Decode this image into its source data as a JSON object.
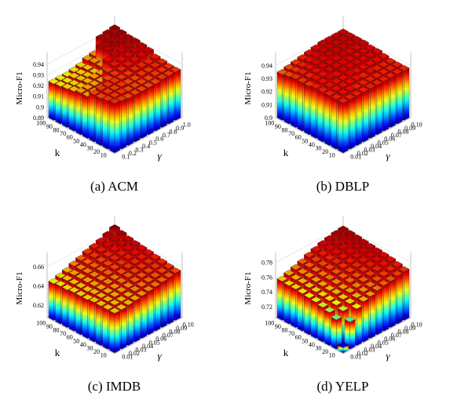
{
  "figure": {
    "panels": [
      {
        "id": "acm",
        "caption": "(a) ACM"
      },
      {
        "id": "dblp",
        "caption": "(b) DBLP"
      },
      {
        "id": "imdb",
        "caption": "(c) IMDB"
      },
      {
        "id": "yelp",
        "caption": "(d) YELP"
      }
    ]
  },
  "chart_data": [
    {
      "type": "bar3d",
      "dataset": "ACM",
      "zlabel": "Micro-F1",
      "xlabel": "k",
      "ylabel": "γ",
      "k_ticks": [
        "100",
        "90",
        "80",
        "70",
        "60",
        "50",
        "40",
        "30",
        "20",
        "10"
      ],
      "gamma_ticks": [
        "0.1",
        "0.2",
        "0.3",
        "0.4",
        "0.5",
        "0.6",
        "0.7",
        "0.8",
        "0.9",
        "1.0"
      ],
      "z_ticks": [
        "0.89",
        "0.9",
        "0.91",
        "0.92",
        "0.93",
        "0.94"
      ],
      "zlim": [
        0.89,
        0.945
      ],
      "note": "rows: k from 10 to 100; columns: gamma from 0.1 to 1.0 (values estimated)",
      "values": [
        [
          0.936,
          0.935,
          0.934,
          0.934,
          0.934,
          0.934,
          0.934,
          0.935,
          0.935,
          0.935
        ],
        [
          0.935,
          0.935,
          0.935,
          0.934,
          0.934,
          0.934,
          0.934,
          0.935,
          0.935,
          0.935
        ],
        [
          0.934,
          0.935,
          0.935,
          0.935,
          0.934,
          0.934,
          0.935,
          0.935,
          0.936,
          0.936
        ],
        [
          0.934,
          0.935,
          0.935,
          0.935,
          0.935,
          0.935,
          0.936,
          0.936,
          0.936,
          0.937
        ],
        [
          0.929,
          0.929,
          0.929,
          0.934,
          0.935,
          0.936,
          0.937,
          0.938,
          0.939,
          0.94
        ],
        [
          0.929,
          0.929,
          0.929,
          0.929,
          0.935,
          0.937,
          0.938,
          0.939,
          0.94,
          0.941
        ],
        [
          0.927,
          0.927,
          0.928,
          0.929,
          0.929,
          0.938,
          0.94,
          0.94,
          0.941,
          0.942
        ],
        [
          0.926,
          0.926,
          0.927,
          0.927,
          0.927,
          0.93,
          0.941,
          0.942,
          0.942,
          0.942
        ],
        [
          0.925,
          0.925,
          0.926,
          0.926,
          0.927,
          0.93,
          0.941,
          0.942,
          0.943,
          0.943
        ],
        [
          0.924,
          0.924,
          0.924,
          0.925,
          0.926,
          0.929,
          0.93,
          0.942,
          0.943,
          0.944
        ]
      ]
    },
    {
      "type": "bar3d",
      "dataset": "DBLP",
      "zlabel": "Micro-F1",
      "xlabel": "k",
      "ylabel": "γ",
      "k_ticks": [
        "100",
        "90",
        "80",
        "70",
        "60",
        "50",
        "40",
        "30",
        "20",
        "10"
      ],
      "gamma_ticks": [
        "0.01",
        "0.02",
        "0.03",
        "0.04",
        "0.05",
        "0.06",
        "0.07",
        "0.08",
        "0.09",
        "0.10"
      ],
      "z_ticks": [
        "0.9",
        "0.91",
        "0.92",
        "0.93",
        "0.94"
      ],
      "zlim": [
        0.9,
        0.945
      ],
      "note": "rows: k from 10 to 100; columns: gamma from 0.01 to 0.10 (values estimated)",
      "values": [
        [
          0.938,
          0.938,
          0.938,
          0.938,
          0.938,
          0.938,
          0.938,
          0.938,
          0.938,
          0.938
        ],
        [
          0.938,
          0.939,
          0.939,
          0.938,
          0.938,
          0.938,
          0.938,
          0.938,
          0.938,
          0.938
        ],
        [
          0.938,
          0.939,
          0.939,
          0.939,
          0.939,
          0.938,
          0.939,
          0.938,
          0.938,
          0.938
        ],
        [
          0.938,
          0.939,
          0.939,
          0.939,
          0.94,
          0.939,
          0.939,
          0.939,
          0.939,
          0.939
        ],
        [
          0.938,
          0.939,
          0.94,
          0.939,
          0.94,
          0.94,
          0.94,
          0.94,
          0.94,
          0.94
        ],
        [
          0.937,
          0.939,
          0.939,
          0.94,
          0.94,
          0.94,
          0.94,
          0.94,
          0.94,
          0.94
        ],
        [
          0.937,
          0.938,
          0.939,
          0.94,
          0.94,
          0.94,
          0.941,
          0.94,
          0.94,
          0.941
        ],
        [
          0.937,
          0.938,
          0.939,
          0.94,
          0.94,
          0.941,
          0.941,
          0.941,
          0.941,
          0.941
        ],
        [
          0.936,
          0.937,
          0.938,
          0.939,
          0.94,
          0.941,
          0.941,
          0.941,
          0.941,
          0.941
        ],
        [
          0.935,
          0.936,
          0.937,
          0.938,
          0.939,
          0.94,
          0.941,
          0.941,
          0.941,
          0.941
        ]
      ]
    },
    {
      "type": "bar3d",
      "dataset": "IMDB",
      "zlabel": "Micro-F1",
      "xlabel": "k",
      "ylabel": "γ",
      "k_ticks": [
        "100",
        "90",
        "80",
        "70",
        "60",
        "50",
        "40",
        "30",
        "20",
        "10"
      ],
      "gamma_ticks": [
        "0.01",
        "0.02",
        "0.03",
        "0.04",
        "0.05",
        "0.06",
        "0.07",
        "0.08",
        "0.09",
        "0.10"
      ],
      "z_ticks": [
        "0.62",
        "0.64",
        "0.66"
      ],
      "zlim": [
        0.607,
        0.668
      ],
      "note": "rows: k from 10 to 100; columns: gamma from 0.01 to 0.10 (values estimated)",
      "values": [
        [
          0.648,
          0.648,
          0.649,
          0.65,
          0.651,
          0.652,
          0.653,
          0.654,
          0.655,
          0.656
        ],
        [
          0.648,
          0.649,
          0.649,
          0.65,
          0.652,
          0.653,
          0.654,
          0.655,
          0.656,
          0.657
        ],
        [
          0.648,
          0.649,
          0.65,
          0.651,
          0.652,
          0.654,
          0.655,
          0.656,
          0.657,
          0.658
        ],
        [
          0.648,
          0.649,
          0.65,
          0.651,
          0.653,
          0.655,
          0.656,
          0.657,
          0.658,
          0.659
        ],
        [
          0.647,
          0.649,
          0.65,
          0.652,
          0.653,
          0.655,
          0.657,
          0.658,
          0.659,
          0.66
        ],
        [
          0.647,
          0.648,
          0.65,
          0.652,
          0.654,
          0.656,
          0.657,
          0.659,
          0.66,
          0.661
        ],
        [
          0.647,
          0.648,
          0.65,
          0.652,
          0.654,
          0.656,
          0.658,
          0.659,
          0.661,
          0.662
        ],
        [
          0.646,
          0.648,
          0.65,
          0.652,
          0.654,
          0.656,
          0.658,
          0.66,
          0.662,
          0.663
        ],
        [
          0.646,
          0.648,
          0.65,
          0.652,
          0.654,
          0.657,
          0.659,
          0.661,
          0.663,
          0.665
        ],
        [
          0.645,
          0.647,
          0.649,
          0.652,
          0.654,
          0.657,
          0.659,
          0.661,
          0.664,
          0.667
        ]
      ]
    },
    {
      "type": "bar3d",
      "dataset": "YELP",
      "zlabel": "Micro-F1",
      "xlabel": "k",
      "ylabel": "γ",
      "k_ticks": [
        "100",
        "90",
        "80",
        "70",
        "60",
        "50",
        "40",
        "30",
        "20",
        "10"
      ],
      "gamma_ticks": [
        "0.01",
        "0.02",
        "0.03",
        "0.04",
        "0.05",
        "0.06",
        "0.07",
        "0.08",
        "0.09",
        "0.10"
      ],
      "z_ticks": [
        "0.72",
        "0.74",
        "0.76",
        "0.78"
      ],
      "zlim": [
        0.705,
        0.785
      ],
      "note": "rows: k from 10 to 100; columns: gamma from 0.01 to 0.10 (values estimated)",
      "values": [
        [
          0.712,
          0.742,
          0.755,
          0.76,
          0.762,
          0.765,
          0.767,
          0.768,
          0.77,
          0.771
        ],
        [
          0.745,
          0.752,
          0.757,
          0.76,
          0.763,
          0.765,
          0.768,
          0.77,
          0.772,
          0.773
        ],
        [
          0.75,
          0.755,
          0.758,
          0.762,
          0.764,
          0.767,
          0.77,
          0.772,
          0.774,
          0.775
        ],
        [
          0.752,
          0.756,
          0.76,
          0.762,
          0.766,
          0.768,
          0.771,
          0.773,
          0.775,
          0.776
        ],
        [
          0.754,
          0.757,
          0.76,
          0.764,
          0.767,
          0.77,
          0.772,
          0.774,
          0.776,
          0.777
        ],
        [
          0.755,
          0.758,
          0.761,
          0.765,
          0.768,
          0.771,
          0.773,
          0.775,
          0.777,
          0.778
        ],
        [
          0.756,
          0.759,
          0.762,
          0.765,
          0.769,
          0.772,
          0.774,
          0.776,
          0.778,
          0.779
        ],
        [
          0.757,
          0.76,
          0.763,
          0.766,
          0.769,
          0.772,
          0.775,
          0.777,
          0.779,
          0.78
        ],
        [
          0.757,
          0.76,
          0.763,
          0.767,
          0.77,
          0.773,
          0.776,
          0.778,
          0.78,
          0.781
        ],
        [
          0.758,
          0.761,
          0.764,
          0.767,
          0.771,
          0.774,
          0.777,
          0.779,
          0.781,
          0.782
        ]
      ]
    }
  ]
}
